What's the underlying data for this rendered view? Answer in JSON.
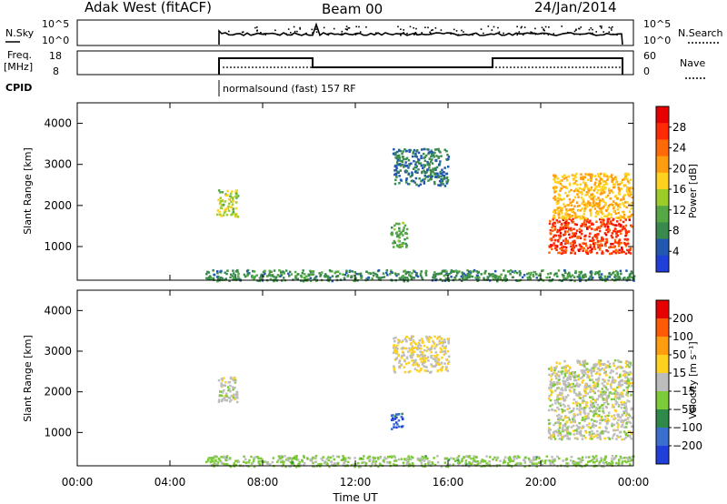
{
  "header": {
    "radar": "Adak West (fitACF)",
    "beam": "Beam 00",
    "date": "24/Jan/2014"
  },
  "top_panels": {
    "nsky_label": "N.Sky",
    "nsky_ticks": [
      "10^5",
      "10^0"
    ],
    "nsearch_label": "N.Search",
    "nsearch_ticks": [
      "10^5",
      "10^0"
    ],
    "freq_label": "Freq.",
    "freq_unit": "[MHz]",
    "freq_ticks": [
      "18",
      "8"
    ],
    "nave_label": "Nave",
    "nave_ticks": [
      "60",
      "0"
    ],
    "cpid_label": "CPID",
    "cpid_value": "normalsound (fast) 157 RF"
  },
  "chart_data": [
    {
      "type": "heatmap",
      "panel": "power",
      "ylabel": "Slant Range [km]",
      "yticks": [
        "4000",
        "3000",
        "2000",
        "1000"
      ],
      "ylim": [
        180,
        4500
      ],
      "xlim_hours": [
        0,
        24
      ],
      "colorbar": {
        "label": "Power [dB]",
        "ticks": [
          "28",
          "24",
          "20",
          "16",
          "12",
          "8",
          "4"
        ],
        "colors": [
          "#1f3fd8",
          "#2358b0",
          "#3a8a4e",
          "#56a845",
          "#9bcc2a",
          "#ffd21f",
          "#ff9d10",
          "#ff6a08",
          "#ff2a05",
          "#e60000"
        ],
        "range": [
          0,
          30
        ]
      },
      "echo_regions": [
        {
          "t0": 6.0,
          "t1": 6.9,
          "r0": 1750,
          "r1": 2400,
          "value": 14
        },
        {
          "t0": 13.6,
          "t1": 16.0,
          "r0": 2500,
          "r1": 3400,
          "value": 6
        },
        {
          "t0": 13.5,
          "t1": 14.2,
          "r0": 1000,
          "r1": 1600,
          "value": 10
        },
        {
          "t0": 20.3,
          "t1": 23.9,
          "r0": 850,
          "r1": 1700,
          "value": 25
        },
        {
          "t0": 20.5,
          "t1": 23.9,
          "r0": 1700,
          "r1": 2800,
          "value": 18
        },
        {
          "t0": 5.5,
          "t1": 24.0,
          "r0": 180,
          "r1": 450,
          "value": 8
        }
      ]
    },
    {
      "type": "heatmap",
      "panel": "velocity",
      "ylabel": "Slant Range [km]",
      "yticks": [
        "4000",
        "3000",
        "2000",
        "1000"
      ],
      "ylim": [
        180,
        4500
      ],
      "xlim_hours": [
        0,
        24
      ],
      "xticks": [
        "00:00",
        "04:00",
        "08:00",
        "12:00",
        "16:00",
        "20:00",
        "00:00"
      ],
      "xlabel": "Time UT",
      "colorbar": {
        "label": "Velocity [m s⁻¹]",
        "ticks": [
          "200",
          "100",
          "50",
          "15",
          "−15",
          "−50",
          "−100",
          "−200"
        ],
        "colors": [
          "#1f3fd8",
          "#3a6fcf",
          "#2f8a4a",
          "#7ecb3a",
          "#bdbdbd",
          "#ffd21f",
          "#ff9d10",
          "#ff5a05",
          "#e60000"
        ],
        "range": [
          -250,
          250
        ]
      },
      "echo_regions": [
        {
          "t0": 6.0,
          "t1": 6.9,
          "r0": 1750,
          "r1": 2400,
          "value": 0
        },
        {
          "t0": 13.6,
          "t1": 16.0,
          "r0": 2500,
          "r1": 3400,
          "value": 30
        },
        {
          "t0": 13.5,
          "t1": 14.0,
          "r0": 1100,
          "r1": 1500,
          "value": -180
        },
        {
          "t0": 20.3,
          "t1": 23.9,
          "r0": 850,
          "r1": 2800,
          "value": 0
        },
        {
          "t0": 5.5,
          "t1": 24.0,
          "r0": 180,
          "r1": 450,
          "value": -40
        }
      ]
    }
  ]
}
